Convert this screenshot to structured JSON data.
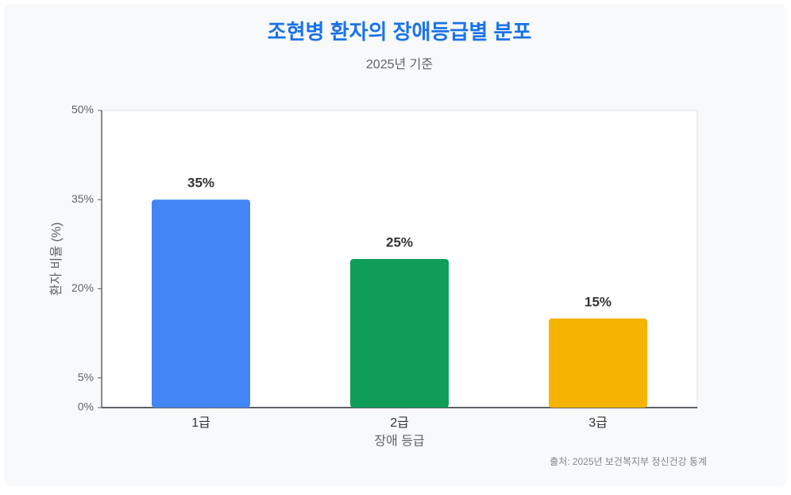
{
  "chart_data": {
    "type": "bar",
    "title": "조현병 환자의 장애등급별 분포",
    "subtitle": "2025년 기준",
    "x_label": "장애 등급",
    "y_label": "환자 비율 (%)",
    "source": "출처: 2025년 보건복지부 정신건강 통계",
    "categories": [
      "1급",
      "2급",
      "3급"
    ],
    "values": [
      35,
      25,
      15
    ],
    "value_labels": [
      "35%",
      "25%",
      "15%"
    ],
    "colors": [
      "#4285f4",
      "#0f9d58",
      "#f4b400"
    ],
    "ylim": [
      0,
      50
    ],
    "yticks": [
      {
        "value": 0,
        "label": "0%"
      },
      {
        "value": 5,
        "label": "5%"
      },
      {
        "value": 20,
        "label": "20%"
      },
      {
        "value": 35,
        "label": "35%"
      },
      {
        "value": 50,
        "label": "50%"
      }
    ],
    "grid": false
  }
}
